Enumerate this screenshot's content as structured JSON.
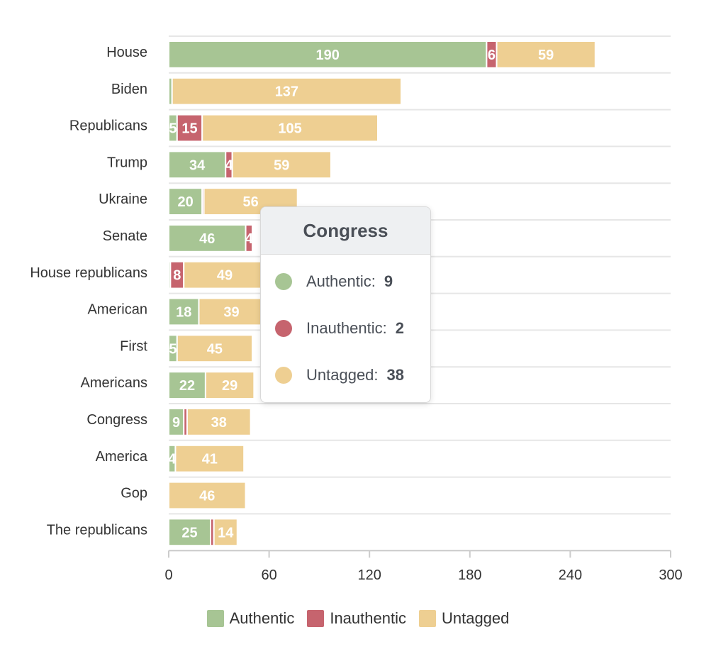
{
  "chart_data": {
    "type": "bar",
    "orientation": "horizontal",
    "stacked": true,
    "categories": [
      "House",
      "Biden",
      "Republicans",
      "Trump",
      "Ukraine",
      "Senate",
      "House republicans",
      "American",
      "First",
      "Americans",
      "Congress",
      "America",
      "Gop",
      "The republicans"
    ],
    "series": [
      {
        "name": "Authentic",
        "color": "#a7c594",
        "values": [
          190,
          2,
          5,
          34,
          20,
          46,
          1,
          18,
          5,
          22,
          9,
          4,
          0,
          25
        ]
      },
      {
        "name": "Inauthentic",
        "color": "#c6646e",
        "values": [
          6,
          0,
          15,
          4,
          1,
          4,
          8,
          0,
          0,
          0,
          2,
          0,
          0,
          2
        ]
      },
      {
        "name": "Untagged",
        "color": "#eecf92",
        "values": [
          59,
          137,
          105,
          59,
          56,
          0,
          49,
          39,
          45,
          29,
          38,
          41,
          46,
          14
        ]
      }
    ],
    "xlim": [
      0,
      300
    ],
    "xticks": [
      0,
      60,
      120,
      180,
      240,
      300
    ],
    "grid": true,
    "legend_position": "bottom"
  },
  "tooltip": {
    "title": "Congress",
    "rows": [
      {
        "label": "Authentic:",
        "value": "9",
        "color": "#a7c594"
      },
      {
        "label": "Inauthentic:",
        "value": "2",
        "color": "#c6646e"
      },
      {
        "label": "Untagged:",
        "value": "38",
        "color": "#eecf92"
      }
    ]
  },
  "legend": {
    "items": [
      {
        "label": "Authentic",
        "color": "#a7c594"
      },
      {
        "label": "Inauthentic",
        "color": "#c6646e"
      },
      {
        "label": "Untagged",
        "color": "#eecf92"
      }
    ]
  }
}
